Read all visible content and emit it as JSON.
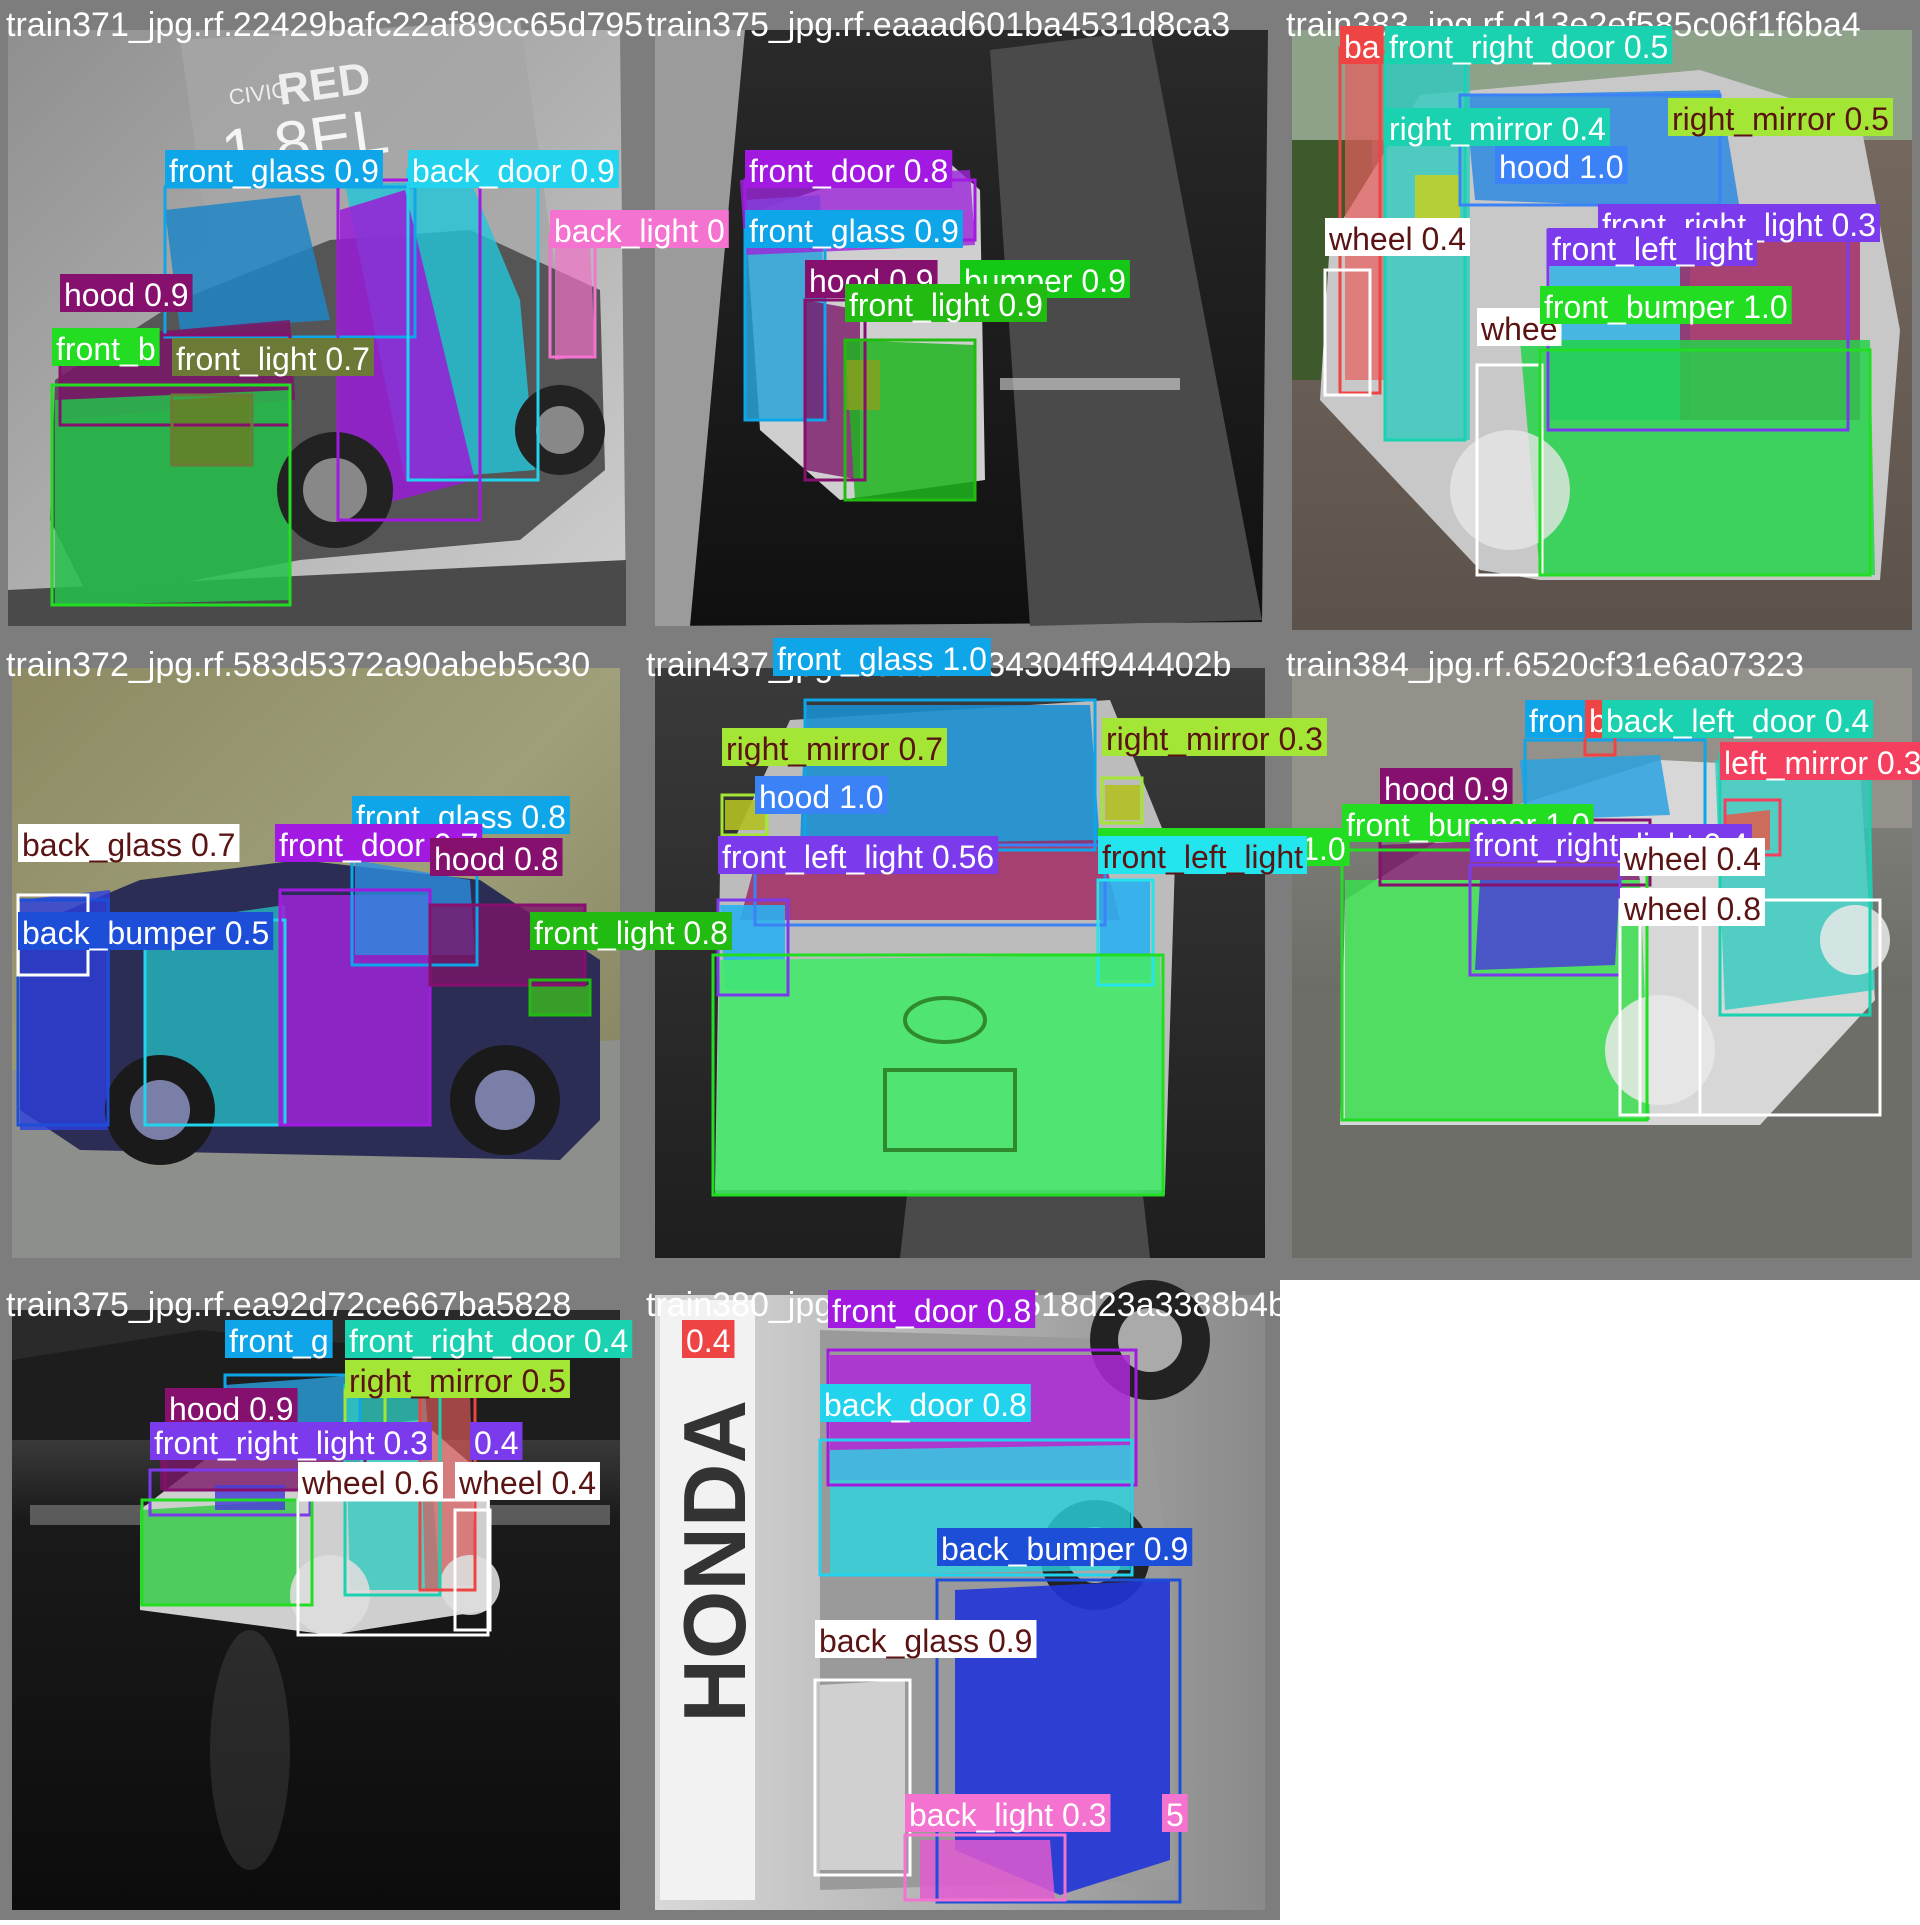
{
  "grid": {
    "tiles": [
      {
        "filename": "train371_jpg.rf.22429bafc22af89cc65d795",
        "scene": "Grey hatchback with a 'CIVIC RED 1.8EL' sign on the wall",
        "sign_text": {
          "line1": "CIVIC",
          "line2": "RED",
          "line3": "1.8EL"
        },
        "labels": [
          {
            "text": "front_glass 0.9",
            "color": "#0ea5e9"
          },
          {
            "text": "back_door 0.9",
            "color": "#22d3ee"
          },
          {
            "text": "back_light 0",
            "color": "#f472d0"
          },
          {
            "text": "hood 0.9",
            "color": "#86106e"
          },
          {
            "text": "front_b",
            "color": "#22dd22"
          },
          {
            "text": "front_light 0.7",
            "color": "#6b7a36"
          }
        ]
      },
      {
        "filename": "train375_jpg.rf.eaaad601ba4531d8ca3",
        "scene": "Rotated grayscale image of a car front",
        "labels": [
          {
            "text": "front_door 0.8",
            "color": "#a21ae2"
          },
          {
            "text": "front_glass 0.9",
            "color": "#0ea5e9"
          },
          {
            "text": "hood 0.9",
            "color": "#86106e"
          },
          {
            "text": "bumper 0.9",
            "color": "#16c816"
          },
          {
            "text": "front_light 0.9",
            "color": "#22bb11"
          }
        ]
      },
      {
        "filename": "train383_jpg.rf.d13e2ef585c06f1f6ba4",
        "scene": "Silver sedan front on brick pavement",
        "labels": [
          {
            "text": "ba",
            "color": "#ef4444"
          },
          {
            "text": "front_right_door 0.5",
            "color": "#1ad1b0"
          },
          {
            "text": "right_mirror 0.5",
            "color": "#a3e635"
          },
          {
            "text": "right_mirror 0.4",
            "color": "#1ad1b0"
          },
          {
            "text": "hood 1.0",
            "color": "#3b82f6"
          },
          {
            "text": "front_right_light 0.3",
            "color": "#7c3aed"
          },
          {
            "text": "front_left_light",
            "color": "#7c3aed"
          },
          {
            "text": "wheel 0.4",
            "color": "#ffffff"
          },
          {
            "text": "whee",
            "color": "#ffffff"
          },
          {
            "text": "front_bumper 1.0",
            "color": "#22dd22"
          }
        ]
      },
      {
        "filename": "train372_jpg.rf.583d5372a90abeb5c30",
        "scene": "Motion-blurred car driving on a road",
        "labels": [
          {
            "text": "front_glass 0.8",
            "color": "#0ea5e9"
          },
          {
            "text": "back_glass 0.7",
            "color": "#ffffff"
          },
          {
            "text": "front_door 0.7",
            "color": "#a21ae2"
          },
          {
            "text": "hood 0.8",
            "color": "#86106e"
          },
          {
            "text": "back_bumper 0.5",
            "color": "#1d4ed8"
          },
          {
            "text": "front_light 0.8",
            "color": "#22bb11"
          }
        ]
      },
      {
        "filename": "train437_jpg.rf.30092434304ff944402b",
        "scene": "Front view of a silver Toyota in a parking garage",
        "labels": [
          {
            "text": "front_glass 1.0",
            "color": "#0ea5e9"
          },
          {
            "text": "right_mirror 0.7",
            "color": "#a3e635"
          },
          {
            "text": "right_mirror 0.3",
            "color": "#a3e635"
          },
          {
            "text": "hood 1.0",
            "color": "#3b82f6"
          },
          {
            "text": "front_left_light 0.56",
            "color": "#7c3aed"
          },
          {
            "text": "front_bumper 1.0",
            "color": "#22dd22"
          },
          {
            "text": "front_left_light",
            "color": "#22e5ee"
          }
        ]
      },
      {
        "filename": "train384_jpg.rf.6520cf31e6a07323",
        "scene": "White car on gravel, front three-quarter view",
        "labels": [
          {
            "text": "fron",
            "color": "#0ea5e9"
          },
          {
            "text": "b",
            "color": "#ef4444"
          },
          {
            "text": "back_left_door 0.4",
            "color": "#1ad1b0"
          },
          {
            "text": "left_mirror 0.3",
            "color": "#f43f5e"
          },
          {
            "text": "hood 0.9",
            "color": "#86106e"
          },
          {
            "text": "front_bumper 1.0",
            "color": "#22dd22"
          },
          {
            "text": "front_right_light 0.4",
            "color": "#7c3aed"
          },
          {
            "text": "wheel 0.4",
            "color": "#ffffff"
          },
          {
            "text": "wheel 0.8",
            "color": "#ffffff"
          }
        ]
      },
      {
        "filename": "train375_jpg.rf.ea92d72ce667ba5828",
        "scene": "Green car on a wet road at dusk",
        "labels": [
          {
            "text": "front_g",
            "color": "#0ea5e9"
          },
          {
            "text": "front_right_door 0.4",
            "color": "#1ad1b0"
          },
          {
            "text": "0.4",
            "color": "#ef4444"
          },
          {
            "text": "right_mirror 0.5",
            "color": "#a3e635"
          },
          {
            "text": "hood 0.9",
            "color": "#86106e"
          },
          {
            "text": "front_right_light 0.3",
            "color": "#7c3aed"
          },
          {
            "text": "0.4",
            "color": "#7c3aed"
          },
          {
            "text": "wheel 0.6",
            "color": "#ffffff"
          },
          {
            "text": "wheel 0.4",
            "color": "#ffffff"
          }
        ]
      },
      {
        "filename": "train380_jpg.rf.0c30b32d518d23a3388b4be",
        "scene": "Rotated grayscale car next to a HONDA sign",
        "sign_text": {
          "line1": "HONDA"
        },
        "labels": [
          {
            "text": "front_door 0.8",
            "color": "#a21ae2"
          },
          {
            "text": "back_door 0.8",
            "color": "#22d3ee"
          },
          {
            "text": "back_bumper 0.9",
            "color": "#1d4ed8"
          },
          {
            "text": "back_glass 0.9",
            "color": "#ffffff"
          },
          {
            "text": "back_light 0.3",
            "color": "#f472d0"
          },
          {
            "text": "5",
            "color": "#f472d0"
          }
        ]
      }
    ]
  }
}
